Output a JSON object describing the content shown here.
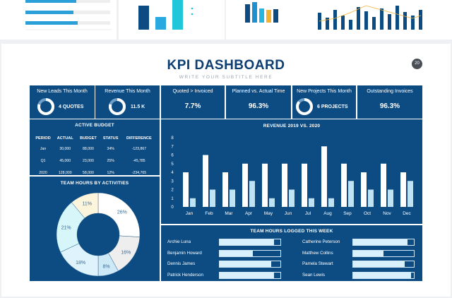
{
  "header": {
    "title": "KPI DASHBOARD",
    "subtitle": "WRITE YOUR SUBTITLE HERE",
    "page_number": "20"
  },
  "kpis": [
    {
      "label": "New Leads This Month",
      "value": "4 QUOTES",
      "ring_fraction": 0.8
    },
    {
      "label": "Revenue This Month",
      "value": "11.5 K",
      "ring_fraction": 0.8
    },
    {
      "label": "Quoted > Invoiced",
      "value": "7.7%"
    },
    {
      "label": "Planned vs. Actual Time",
      "value": "96.3%"
    },
    {
      "label": "New Projects This Month",
      "value": "6 PROJECTS",
      "ring_fraction": 0.85
    },
    {
      "label": "Outstanding Invoices",
      "value": "96.3%"
    }
  ],
  "active_budget": {
    "title": "ACTIVE BUDGET",
    "columns": [
      "PERIOD",
      "ACTUAL",
      "BUDGET",
      "STATUS",
      "DIFFERENCE"
    ],
    "rows": [
      [
        "Jan",
        "30,000",
        "88,000",
        "34%",
        "-123,867"
      ],
      [
        "Q1",
        "45,000",
        "23,000",
        "25%",
        "-45,785"
      ],
      [
        "2020",
        "128,000",
        "58,000",
        "12%",
        "-234,765"
      ]
    ]
  },
  "team_hours_activities": {
    "title": "TEAM HOURS BY ACTIVITIES",
    "slices": [
      {
        "value": 26,
        "label": "26%",
        "color": "#ffffff"
      },
      {
        "value": 16,
        "label": "16%",
        "color": "#eeeeee"
      },
      {
        "value": 8,
        "label": "8%",
        "color": "#cde8f6"
      },
      {
        "value": 18,
        "label": "18%",
        "color": "#dff3fd"
      },
      {
        "value": 21,
        "label": "21%",
        "color": "#d6f6fa"
      },
      {
        "value": 11,
        "label": "11%",
        "color": "#fdf4dc"
      }
    ]
  },
  "chart_data": {
    "type": "bar",
    "title": "REVENUE 2019  VS. 2020",
    "categories": [
      "Jan",
      "Feb",
      "Mar",
      "Apr",
      "May",
      "Jun",
      "Jul",
      "Aug",
      "Sep",
      "Oct",
      "Nov",
      "Dec"
    ],
    "series": [
      {
        "values": [
          4,
          6,
          4,
          5,
          5,
          5,
          5,
          7,
          5,
          4,
          5,
          4
        ],
        "color": "#ffffff"
      },
      {
        "values": [
          1,
          2,
          2,
          3,
          1,
          2,
          1,
          1,
          3,
          2,
          2,
          3
        ],
        "color": "#bfe3f5"
      }
    ],
    "ylim": [
      0,
      8
    ],
    "yticks": [
      "0",
      "1",
      "2",
      "3",
      "4",
      "5",
      "6",
      "7",
      "8"
    ],
    "grid": false
  },
  "team_hours_week": {
    "title": "TEAM HOURS LOGGED THIS WEEK",
    "people": [
      {
        "name": "Archie Luna",
        "fraction": 0.9
      },
      {
        "name": "Benjamin Howard",
        "fraction": 0.55
      },
      {
        "name": "Dennis James",
        "fraction": 0.85
      },
      {
        "name": "Patrick Henderson",
        "fraction": 0.9
      },
      {
        "name": "Catherine Peterson",
        "fraction": 0.9
      },
      {
        "name": "Matthew Collins",
        "fraction": 0.5
      },
      {
        "name": "Pamela Stewart",
        "fraction": 0.85
      },
      {
        "name": "Sean Lewis",
        "fraction": 0.95
      }
    ]
  }
}
